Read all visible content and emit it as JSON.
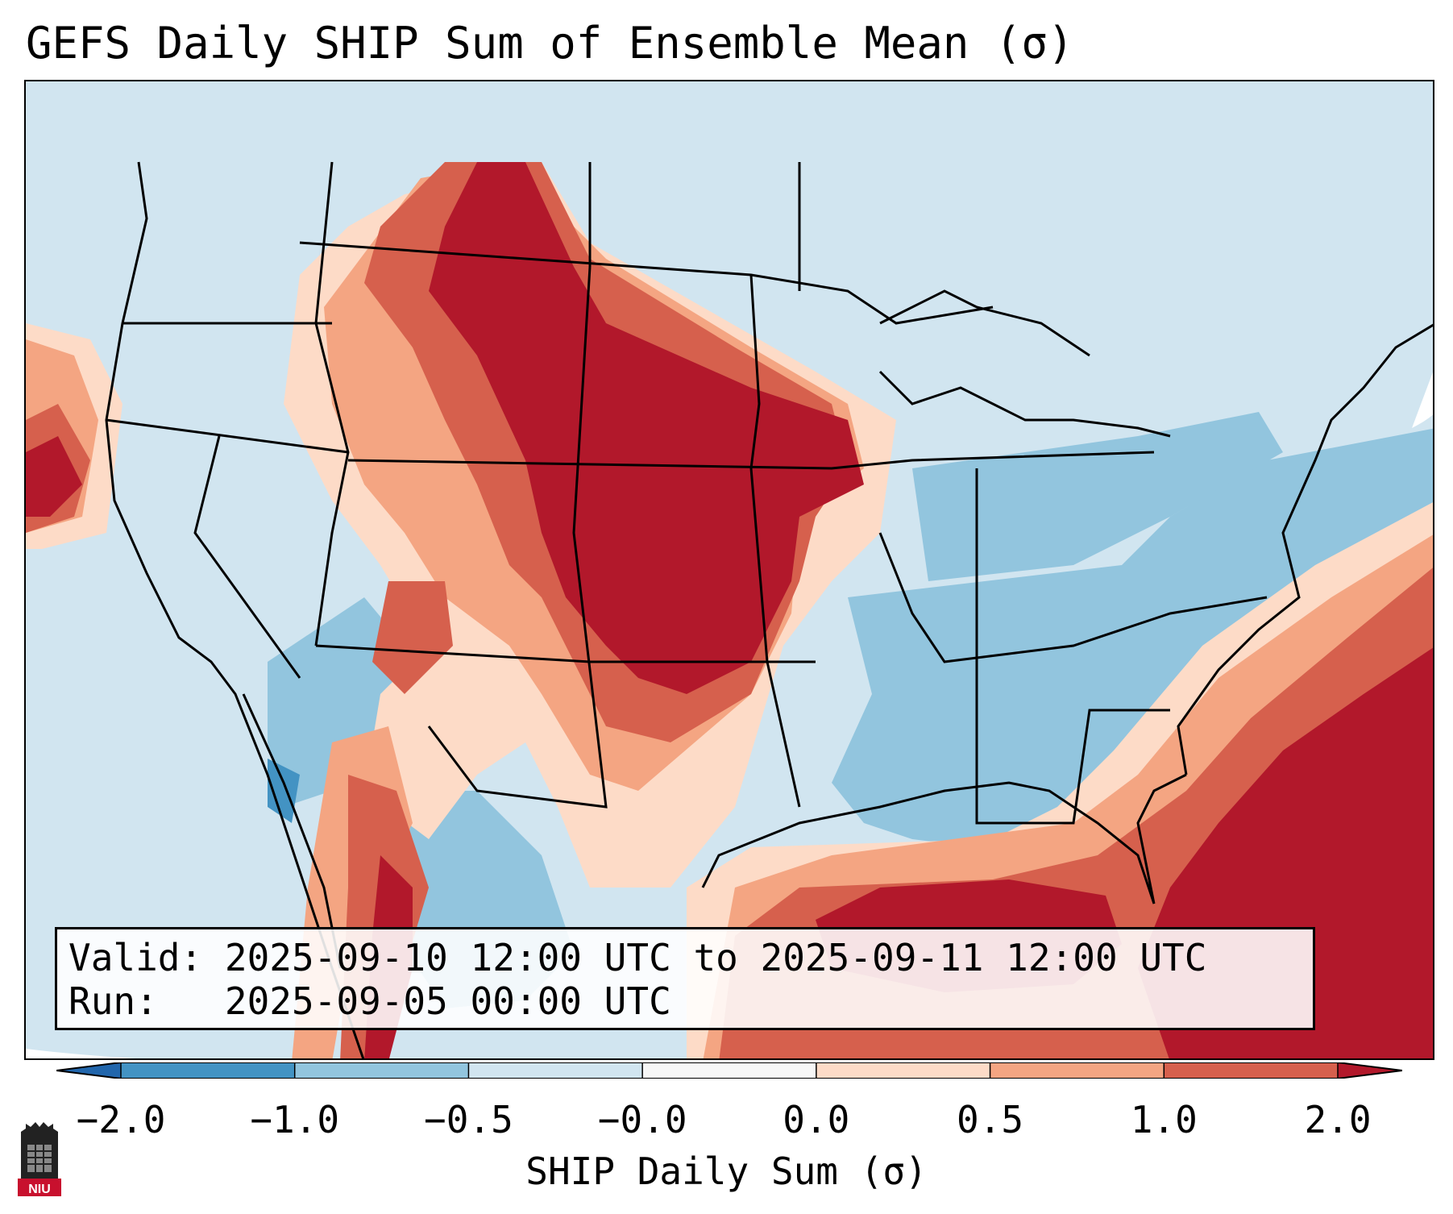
{
  "title": "GEFS Daily SHIP Sum of Ensemble Mean (σ)",
  "info": {
    "valid_label": "Valid:",
    "valid_value": "2025-09-10 12:00 UTC to 2025-09-11 12:00 UTC",
    "run_label": "Run:",
    "run_value": "2025-09-05 00:00 UTC"
  },
  "colorbar": {
    "label": "SHIP Daily Sum (σ)",
    "ticks": [
      "−2.0",
      "−1.0",
      "−0.5",
      "−0.0",
      "0.0",
      "0.5",
      "1.0",
      "2.0"
    ],
    "colors": [
      "#4393c3",
      "#92c5de",
      "#d1e5f0",
      "#f7f7f7",
      "#fddbc7",
      "#f4a582",
      "#d6604d",
      "#b2182b"
    ],
    "under_color": "#2166ac",
    "over_color": "#b2182b"
  },
  "logo_text": "NIU"
}
